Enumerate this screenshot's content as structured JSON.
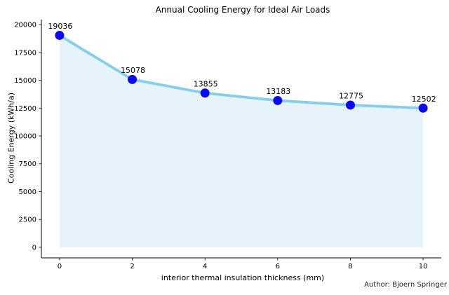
{
  "figure": {
    "footer": {
      "author_credit": "Author: Bjoern Springer"
    }
  },
  "chart_data": {
    "type": "line",
    "title": "Annual Cooling Energy for Ideal Air Loads",
    "xlabel": "interior thermal insulation thickness (mm)",
    "ylabel": "Cooling Energy (kWh/a)",
    "x": [
      0,
      2,
      4,
      6,
      8,
      10
    ],
    "values": [
      19036,
      15078,
      13855,
      13183,
      12775,
      12502
    ],
    "data_labels": [
      "19036",
      "15078",
      "13855",
      "13183",
      "12775",
      "12502"
    ],
    "xticks": [
      0,
      2,
      4,
      6,
      8,
      10
    ],
    "yticks": [
      0,
      2500,
      5000,
      7500,
      10000,
      12500,
      15000,
      17500,
      20000
    ],
    "xlim": [
      -0.5,
      10.5
    ],
    "ylim": [
      -950,
      20450
    ],
    "grid": false,
    "legend": "none",
    "area_fill_baseline": 0,
    "colors": {
      "line": "#87ceeb",
      "marker": "#0b0bee",
      "area_fill": "#e6f3fa",
      "axis": "#000000",
      "text": "#000000"
    }
  }
}
